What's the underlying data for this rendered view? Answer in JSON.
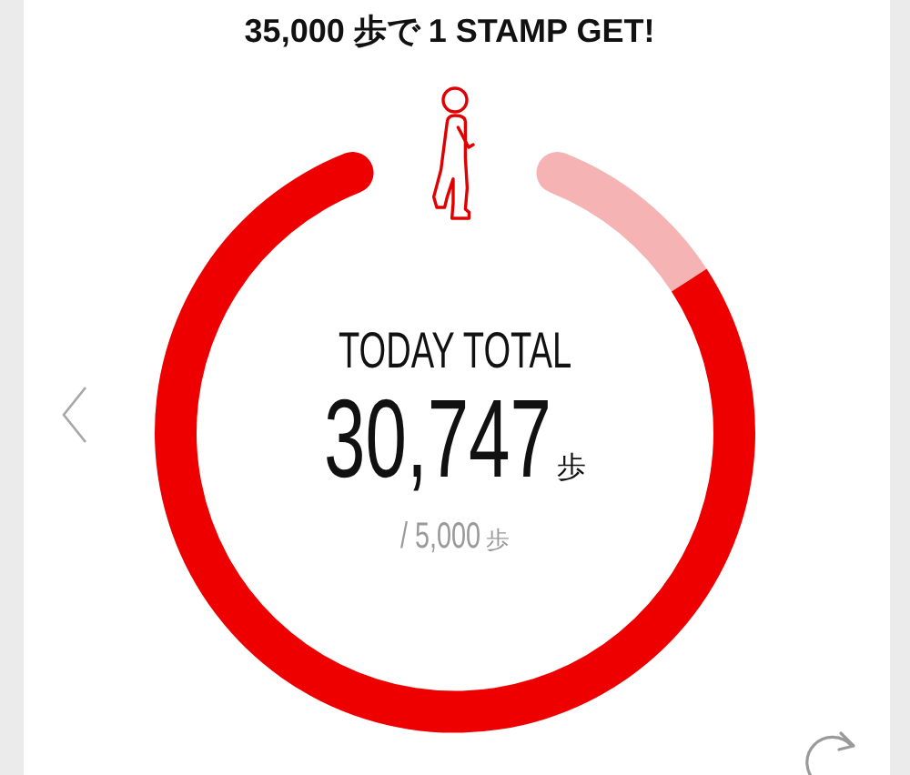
{
  "chart_data": {
    "type": "donut",
    "title": "35,000 歩で 1 STAMP GET!",
    "categories": [
      null,
      null
    ],
    "values": [
      12.2,
      87.8
    ],
    "colors": [
      "#f5b3b3",
      "#ee0000"
    ],
    "annotations": [
      "TODAY TOTAL",
      "30,747歩",
      "/ 5,000歩"
    ]
  }
}
